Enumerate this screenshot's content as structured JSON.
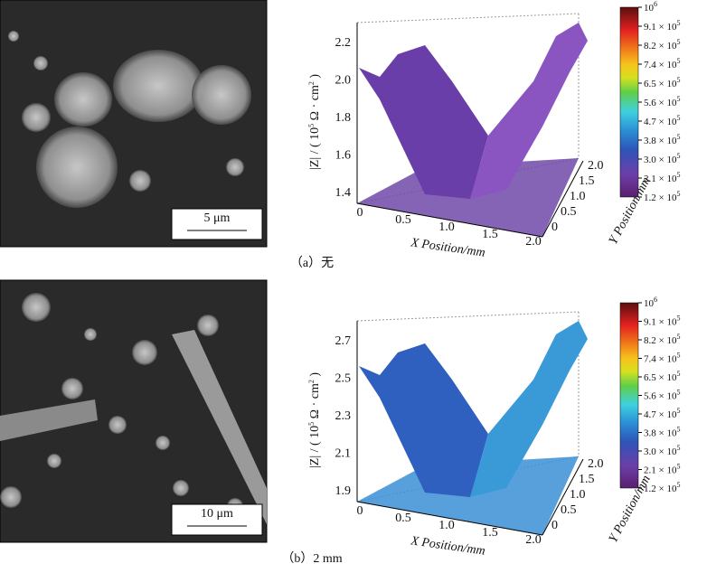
{
  "panels": [
    {
      "caption": "（a）无",
      "scale_bar": "5 μm",
      "plot": {
        "z_label": {
          "pre": "|Z| / ( 10",
          "exp1": "5",
          "mid": " Ω · cm",
          "exp2": "2",
          "post": " )"
        },
        "z_ticks": [
          "2.2",
          "2.0",
          "1.8",
          "1.6",
          "1.4"
        ],
        "x_ticks": [
          "0",
          "0.5",
          "1.0",
          "1.5",
          "2.0"
        ],
        "y_ticks": [
          "0",
          "0.5",
          "1.0",
          "1.5",
          "2.0"
        ],
        "x_label": "X Position/mm",
        "y_label": "Y Position/mm",
        "colorbar": [
          {
            "base": "10",
            "exp": "6"
          },
          {
            "base": "9.1 × 10",
            "exp": "5"
          },
          {
            "base": "8.2 × 10",
            "exp": "5"
          },
          {
            "base": "7.4 × 10",
            "exp": "5"
          },
          {
            "base": "6.5 × 10",
            "exp": "5"
          },
          {
            "base": "5.6 × 10",
            "exp": "5"
          },
          {
            "base": "4.7 × 10",
            "exp": "5"
          },
          {
            "base": "3.8 × 10",
            "exp": "5"
          },
          {
            "base": "3.0 × 10",
            "exp": "5"
          },
          {
            "base": "2.1 × 10",
            "exp": "5"
          },
          {
            "base": "1.2 × 10",
            "exp": "5"
          }
        ]
      }
    },
    {
      "caption": "（b）2 mm",
      "scale_bar": "10 μm",
      "plot": {
        "z_label": {
          "pre": "|Z| / ( 10",
          "exp1": "5",
          "mid": " Ω · cm",
          "exp2": "2",
          "post": " )"
        },
        "z_ticks": [
          "2.7",
          "2.5",
          "2.3",
          "2.1",
          "1.9"
        ],
        "x_ticks": [
          "0",
          "0.5",
          "1.0",
          "1.5",
          "2.0"
        ],
        "y_ticks": [
          "0",
          "0.5",
          "1.0",
          "1.5",
          "2.0"
        ],
        "x_label": "X Position/mm",
        "y_label": "Y Position/mm",
        "colorbar": [
          {
            "base": "10",
            "exp": "6"
          },
          {
            "base": "9.1 × 10",
            "exp": "5"
          },
          {
            "base": "8.2 × 10",
            "exp": "5"
          },
          {
            "base": "7.4 × 10",
            "exp": "5"
          },
          {
            "base": "6.5 × 10",
            "exp": "5"
          },
          {
            "base": "5.6 × 10",
            "exp": "5"
          },
          {
            "base": "4.7 × 10",
            "exp": "5"
          },
          {
            "base": "3.8 × 10",
            "exp": "5"
          },
          {
            "base": "3.0 × 10",
            "exp": "5"
          },
          {
            "base": "2.1 × 10",
            "exp": "5"
          },
          {
            "base": "1.2 × 10",
            "exp": "5"
          }
        ]
      }
    }
  ]
}
